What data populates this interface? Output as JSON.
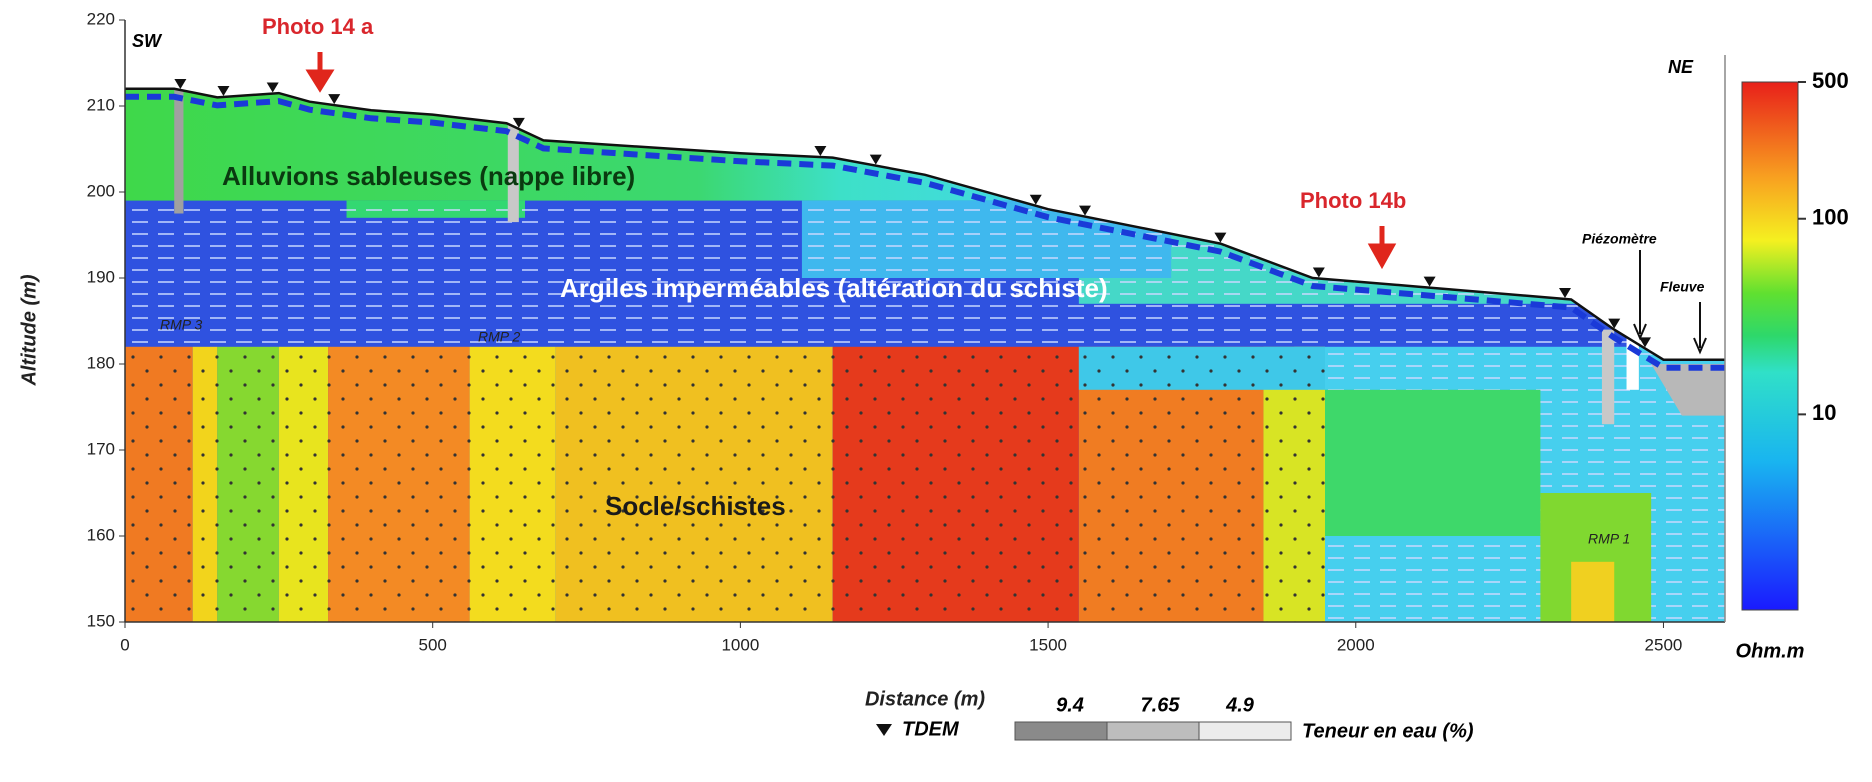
{
  "chart_data": {
    "type": "profile",
    "xlabel": "Distance (m)",
    "ylabel": "Altitude (m)",
    "xlim": [
      0,
      2600
    ],
    "ylim": [
      150,
      220
    ],
    "xticks": [
      0,
      500,
      1000,
      1500,
      2000,
      2500
    ],
    "yticks": [
      150,
      160,
      170,
      180,
      190,
      200,
      210,
      220
    ],
    "surface": {
      "x": [
        0,
        80,
        150,
        250,
        300,
        400,
        500,
        620,
        680,
        1000,
        1150,
        1300,
        1500,
        1780,
        1930,
        2100,
        2350,
        2420,
        2500,
        2600
      ],
      "values": [
        212,
        212,
        211,
        211.5,
        210.5,
        209.5,
        209,
        208,
        206,
        204.5,
        204,
        202,
        198,
        194,
        190,
        189,
        187.5,
        184,
        180.5,
        180.5
      ]
    },
    "tdem_x": [
      90,
      160,
      240,
      340,
      640,
      1130,
      1220,
      1480,
      1560,
      1780,
      1940,
      2120,
      2340,
      2420,
      2470
    ],
    "colorbar": {
      "label": "Ohm.m",
      "log": true,
      "lim": [
        1,
        500
      ],
      "ticks": [
        10,
        100,
        500
      ]
    },
    "labels": {
      "sw": "SW",
      "ne": "NE",
      "photo_a": "Photo 14 a",
      "photo_b": "Photo 14b",
      "alluvions": "Alluvions sableuses (nappe libre)",
      "argiles": "Argiles imperméables (altération du schiste)",
      "socle": "Socle/schistes",
      "rmp1": "RMP 1",
      "rmp2": "RMP 2",
      "rmp3": "RMP 3",
      "piezo": "Piézomètre",
      "fleuve": "Fleuve"
    },
    "legend": {
      "tdem": "TDEM",
      "water_label": "Teneur en eau (%)",
      "water_values": [
        9.4,
        7.65,
        4.9
      ]
    }
  }
}
